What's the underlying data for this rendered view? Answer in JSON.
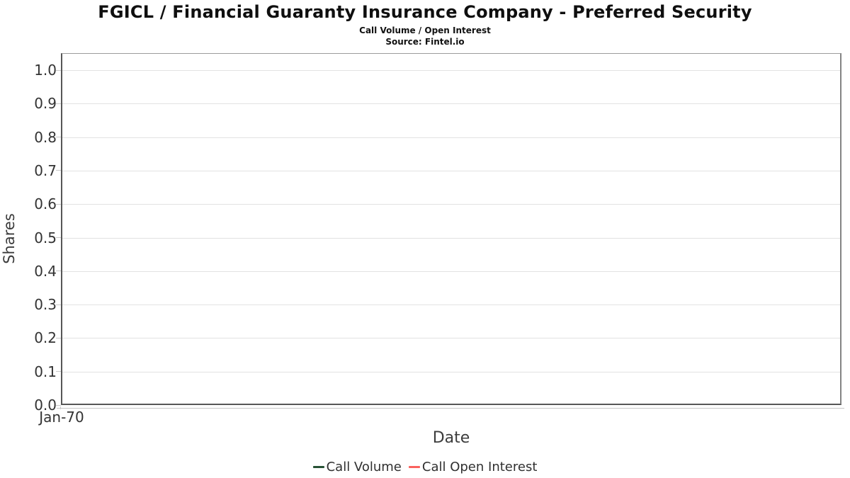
{
  "header": {
    "title": "FGICL / Financial Guaranty Insurance Company - Preferred Security",
    "subtitle": "Call Volume / Open Interest",
    "source": "Source: Fintel.io"
  },
  "chart_data": {
    "type": "line",
    "title": "FGICL / Financial Guaranty Insurance Company - Preferred Security",
    "subtitle": "Call Volume / Open Interest",
    "source": "Source: Fintel.io",
    "xlabel": "Date",
    "ylabel": "Shares",
    "ylim": [
      0.0,
      1.0
    ],
    "ytick_step": 0.1,
    "yticks": [
      "1.0",
      "0.9",
      "0.8",
      "0.7",
      "0.6",
      "0.5",
      "0.4",
      "0.3",
      "0.2",
      "0.1",
      "0.0"
    ],
    "xticks": [
      "Jan-70"
    ],
    "grid": "horizontal",
    "legend_position": "bottom",
    "series": [
      {
        "name": "Call Volume",
        "color": "#275235",
        "x": [],
        "values": []
      },
      {
        "name": "Call Open Interest",
        "color": "#fa625e",
        "x": [],
        "values": []
      }
    ]
  },
  "colors": {
    "grid": "#e2e2e2",
    "plot_border": "#848484",
    "axis_line": "#575757",
    "tick_mark": "#c9c9c9",
    "tick_label": "#333333",
    "axis_title": "#3c3c3c",
    "call_volume": "#275235",
    "call_open_interest": "#fa625e"
  }
}
